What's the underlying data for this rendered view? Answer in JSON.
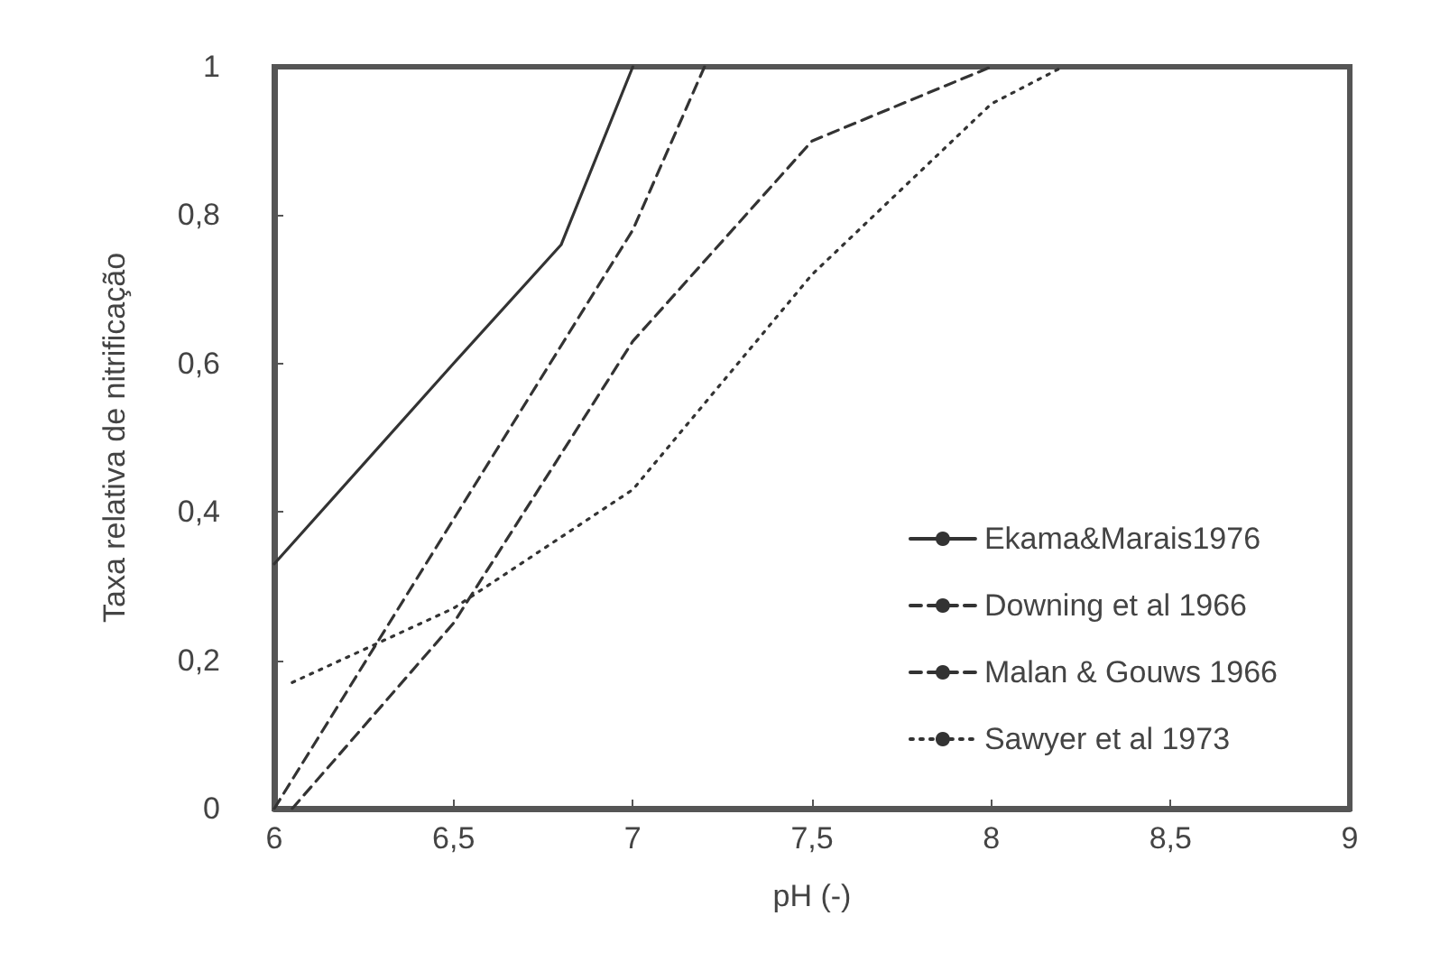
{
  "chart_data": {
    "type": "line",
    "xlabel": "pH (-)",
    "ylabel": "Taxa relativa de nitrificação",
    "xlim": [
      6,
      9
    ],
    "ylim": [
      0,
      1
    ],
    "xticks": [
      6,
      {
        "value": 6.5,
        "label": "6,5"
      },
      7,
      {
        "value": 7.5,
        "label": "7,5"
      },
      8,
      {
        "value": 8.5,
        "label": "8,5"
      },
      9
    ],
    "yticks": [
      0,
      {
        "value": 0.2,
        "label": "0,2"
      },
      {
        "value": 0.4,
        "label": "0,4"
      },
      {
        "value": 0.6,
        "label": "0,6"
      },
      {
        "value": 0.8,
        "label": "0,8"
      },
      1
    ],
    "grid": false,
    "legend": "bottom right",
    "marker": "none",
    "series": [
      {
        "name": "Ekama&Marais1976",
        "color": "#333333",
        "line_style": "solid",
        "x": [
          6,
          6.5,
          6.8,
          7
        ],
        "values": [
          0.33,
          0.6,
          0.76,
          1
        ]
      },
      {
        "name": "Downing et al 1966",
        "color": "#333333",
        "line_style": "dashed",
        "x": [
          6,
          6.5,
          7,
          7.2
        ],
        "values": [
          0,
          0.39,
          0.78,
          1
        ]
      },
      {
        "name": "Malan & Gouws 1966",
        "color": "#333333",
        "line_style": "dashed",
        "x": [
          6.05,
          6.5,
          7,
          7.5,
          7.8,
          8
        ],
        "values": [
          0,
          0.25,
          0.63,
          0.9,
          0.96,
          1
        ]
      },
      {
        "name": "Sawyer et al 1973",
        "color": "#333333",
        "line_style": "dotted",
        "x": [
          6.05,
          6.5,
          7,
          7.5,
          8,
          8.2
        ],
        "values": [
          0.17,
          0.27,
          0.43,
          0.72,
          0.95,
          1
        ]
      }
    ]
  }
}
